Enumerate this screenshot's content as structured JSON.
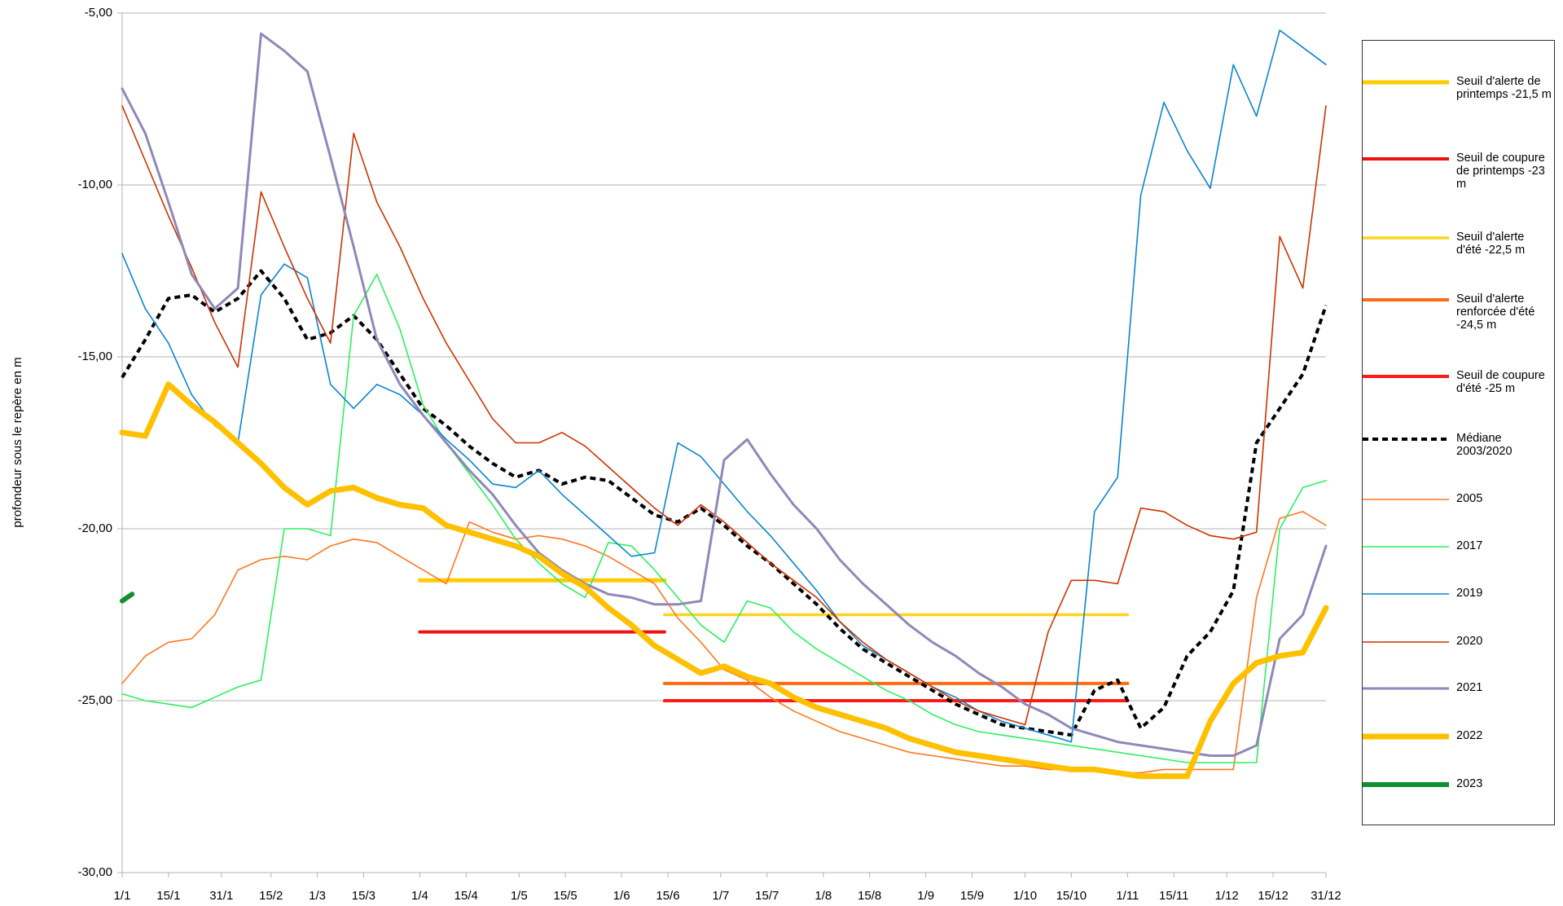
{
  "chart_data": {
    "type": "line",
    "y_label": "profondeur sous le repère en m",
    "grid": true,
    "legend": "right",
    "xlim": [
      1,
      365
    ],
    "xticks": [
      {
        "value": 1,
        "label": "1/1"
      },
      {
        "value": 15,
        "label": "15/1"
      },
      {
        "value": 31,
        "label": "31/1"
      },
      {
        "value": 46,
        "label": "15/2"
      },
      {
        "value": 60,
        "label": "1/3"
      },
      {
        "value": 74,
        "label": "15/3"
      },
      {
        "value": 91,
        "label": "1/4"
      },
      {
        "value": 105,
        "label": "15/4"
      },
      {
        "value": 121,
        "label": "1/5"
      },
      {
        "value": 135,
        "label": "15/5"
      },
      {
        "value": 152,
        "label": "1/6"
      },
      {
        "value": 166,
        "label": "15/6"
      },
      {
        "value": 182,
        "label": "1/7"
      },
      {
        "value": 196,
        "label": "15/7"
      },
      {
        "value": 213,
        "label": "1/8"
      },
      {
        "value": 227,
        "label": "15/8"
      },
      {
        "value": 244,
        "label": "1/9"
      },
      {
        "value": 258,
        "label": "15/9"
      },
      {
        "value": 274,
        "label": "1/10"
      },
      {
        "value": 288,
        "label": "15/10"
      },
      {
        "value": 305,
        "label": "1/11"
      },
      {
        "value": 319,
        "label": "15/11"
      },
      {
        "value": 335,
        "label": "1/12"
      },
      {
        "value": 349,
        "label": "15/12"
      },
      {
        "value": 365,
        "label": "31/12"
      }
    ],
    "ylim": [
      -30,
      -5
    ],
    "yticks": [
      {
        "value": -30,
        "label": "-30,00"
      },
      {
        "value": -25,
        "label": "-25,00"
      },
      {
        "value": -20,
        "label": "-20,00"
      },
      {
        "value": -15,
        "label": "-15,00"
      },
      {
        "value": -10,
        "label": "-10,00"
      },
      {
        "value": -5,
        "label": "-5,00"
      }
    ],
    "x": [
      1,
      8,
      15,
      22,
      29,
      36,
      43,
      50,
      57,
      64,
      71,
      78,
      85,
      92,
      99,
      106,
      113,
      120,
      127,
      134,
      141,
      148,
      155,
      162,
      169,
      176,
      183,
      190,
      197,
      204,
      211,
      218,
      225,
      232,
      239,
      246,
      253,
      260,
      267,
      274,
      281,
      288,
      295,
      302,
      309,
      316,
      323,
      330,
      337,
      344,
      351,
      358,
      365
    ],
    "series": [
      {
        "name": "Seuil d'alerte de printemps -21,5 m",
        "color": "#ffcc00",
        "line_width": 5,
        "x": [
          91,
          165
        ],
        "values": [
          -21.5,
          -21.5
        ]
      },
      {
        "name": "Seuil de coupure de printemps -23 m",
        "color": "#ee1111",
        "line_width": 4,
        "x": [
          91,
          165
        ],
        "values": [
          -23,
          -23
        ]
      },
      {
        "name": "Seuil d'alerte d'été -22,5 m",
        "color": "#ffd320",
        "line_width": 3.5,
        "x": [
          165,
          305
        ],
        "values": [
          -22.5,
          -22.5
        ]
      },
      {
        "name": "Seuil d'alerte renforcée d'été -24,5 m",
        "color": "#ff6a13",
        "line_width": 4,
        "x": [
          165,
          305
        ],
        "values": [
          -24.5,
          -24.5
        ]
      },
      {
        "name": "Seuil de coupure d'été -25 m",
        "color": "#ff1a1a",
        "line_width": 4,
        "x": [
          165,
          305
        ],
        "values": [
          -25,
          -25
        ]
      },
      {
        "name": "Médiane 2003/2020",
        "color": "#000000",
        "line_width": 4,
        "dashed": true,
        "values": [
          -15.6,
          -14.5,
          -13.3,
          -13.2,
          -13.7,
          -13.3,
          -12.5,
          -13.3,
          -14.5,
          -14.3,
          -13.8,
          -14.5,
          -15.5,
          -16.5,
          -17,
          -17.6,
          -18.1,
          -18.5,
          -18.3,
          -18.7,
          -18.5,
          -18.6,
          -19.1,
          -19.6,
          -19.8,
          -19.4,
          -19.9,
          -20.5,
          -21,
          -21.6,
          -22.2,
          -22.9,
          -23.5,
          -23.9,
          -24.3,
          -24.7,
          -25.1,
          -25.4,
          -25.7,
          -25.8,
          -25.9,
          -26,
          -24.7,
          -24.4,
          -25.8,
          -25.2,
          -23.7,
          -23,
          -21.8,
          -17.5,
          -16.5,
          -15.5,
          -13.5
        ]
      },
      {
        "name": "2005",
        "color": "#ff7722",
        "line_width": 1.6,
        "values": [
          -24.5,
          -23.7,
          -23.3,
          -23.2,
          -22.5,
          -21.2,
          -20.9,
          -20.8,
          -20.9,
          -20.5,
          -20.3,
          -20.4,
          -20.8,
          -21.2,
          -21.6,
          -19.8,
          -20.1,
          -20.3,
          -20.2,
          -20.3,
          -20.5,
          -20.8,
          -21.2,
          -21.6,
          -22.6,
          -23.3,
          -24.1,
          -24.4,
          -24.9,
          -25.3,
          -25.6,
          -25.9,
          -26.1,
          -26.3,
          -26.5,
          -26.6,
          -26.7,
          -26.8,
          -26.9,
          -26.9,
          -27,
          -27,
          -27,
          -27.1,
          -27.1,
          -27,
          -27,
          -27,
          -27,
          -22,
          -19.7,
          -19.5,
          -19.9
        ]
      },
      {
        "name": "2017",
        "color": "#2ef060",
        "line_width": 1.6,
        "values": [
          -24.8,
          -25,
          -25.1,
          -25.2,
          -24.9,
          -24.6,
          -24.4,
          -20,
          -20,
          -20.2,
          -13.8,
          -12.6,
          -14.2,
          -16.4,
          -17.5,
          -18.4,
          -19.3,
          -20.3,
          -21,
          -21.6,
          -22,
          -20.4,
          -20.5,
          -21.2,
          -22,
          -22.8,
          -23.3,
          -22.1,
          -22.3,
          -23,
          -23.5,
          -23.9,
          -24.3,
          -24.7,
          -25,
          -25.4,
          -25.7,
          -25.9,
          -26,
          -26.1,
          -26.2,
          -26.3,
          -26.4,
          -26.5,
          -26.6,
          -26.7,
          -26.8,
          -26.8,
          -26.8,
          -26.8,
          -20,
          -18.8,
          -18.6
        ]
      },
      {
        "name": "2019",
        "color": "#0a84d0",
        "line_width": 1.6,
        "values": [
          -12,
          -13.6,
          -14.6,
          -16.1,
          -17,
          -17.5,
          -13.2,
          -12.3,
          -12.7,
          -15.8,
          -16.5,
          -15.8,
          -16.1,
          -16.7,
          -17.4,
          -18,
          -18.7,
          -18.8,
          -18.3,
          -19,
          -19.6,
          -20.2,
          -20.8,
          -20.7,
          -17.5,
          -17.9,
          -18.7,
          -19.5,
          -20.2,
          -21,
          -21.8,
          -22.7,
          -23.4,
          -23.8,
          -24.2,
          -24.6,
          -24.9,
          -25.3,
          -25.6,
          -25.8,
          -26,
          -26.2,
          -19.5,
          -18.5,
          -10.3,
          -7.6,
          -9,
          -10.1,
          -6.5,
          -8,
          -5.5,
          -6,
          -6.5
        ]
      },
      {
        "name": "2020",
        "color": "#cc3300",
        "line_width": 1.6,
        "values": [
          -7.7,
          -9.3,
          -10.9,
          -12.4,
          -14,
          -15.3,
          -10.2,
          -11.8,
          -13.3,
          -14.6,
          -8.5,
          -10.5,
          -11.8,
          -13.3,
          -14.6,
          -15.7,
          -16.8,
          -17.5,
          -17.5,
          -17.2,
          -17.6,
          -18.2,
          -18.8,
          -19.4,
          -19.9,
          -19.3,
          -19.8,
          -20.4,
          -21,
          -21.5,
          -22,
          -22.7,
          -23.3,
          -23.8,
          -24.2,
          -24.6,
          -25,
          -25.3,
          -25.5,
          -25.7,
          -23,
          -21.5,
          -21.5,
          -21.6,
          -19.4,
          -19.5,
          -19.9,
          -20.2,
          -20.3,
          -20.1,
          -11.5,
          -13,
          -7.7
        ]
      },
      {
        "name": "2021",
        "color": "#8f88b8",
        "line_width": 3,
        "values": [
          -7.2,
          -8.5,
          -10.5,
          -12.6,
          -13.6,
          -13,
          -5.6,
          -6.1,
          -6.7,
          -9.2,
          -11.8,
          -14.5,
          -15.8,
          -16.7,
          -17.5,
          -18.3,
          -19,
          -19.9,
          -20.7,
          -21.2,
          -21.6,
          -21.9,
          -22,
          -22.2,
          -22.2,
          -22.1,
          -18,
          -17.4,
          -18.4,
          -19.3,
          -20,
          -20.9,
          -21.6,
          -22.2,
          -22.8,
          -23.3,
          -23.7,
          -24.2,
          -24.6,
          -25.1,
          -25.4,
          -25.8,
          -26,
          -26.2,
          -26.3,
          -26.4,
          -26.5,
          -26.6,
          -26.6,
          -26.3,
          -23.2,
          -22.5,
          -20.5
        ]
      },
      {
        "name": "2022",
        "color": "#ffc000",
        "line_width": 7,
        "values": [
          -17.2,
          -17.3,
          -15.8,
          -16.4,
          -16.9,
          -17.5,
          -18.1,
          -18.8,
          -19.3,
          -18.9,
          -18.8,
          -19.1,
          -19.3,
          -19.4,
          -19.9,
          -20.1,
          -20.3,
          -20.5,
          -20.8,
          -21.3,
          -21.7,
          -22.3,
          -22.8,
          -23.4,
          -23.8,
          -24.2,
          -24,
          -24.3,
          -24.5,
          -24.9,
          -25.2,
          -25.4,
          -25.6,
          -25.8,
          -26.1,
          -26.3,
          -26.5,
          -26.6,
          -26.7,
          -26.8,
          -26.9,
          -27,
          -27,
          -27.1,
          -27.2,
          -27.2,
          -27.2,
          -25.6,
          -24.5,
          -23.9,
          -23.7,
          -23.6,
          -22.3
        ]
      },
      {
        "name": "2023",
        "color": "#109030",
        "line_width": 6,
        "x": [
          1,
          4
        ],
        "values": [
          -22.1,
          -21.9
        ]
      }
    ]
  }
}
